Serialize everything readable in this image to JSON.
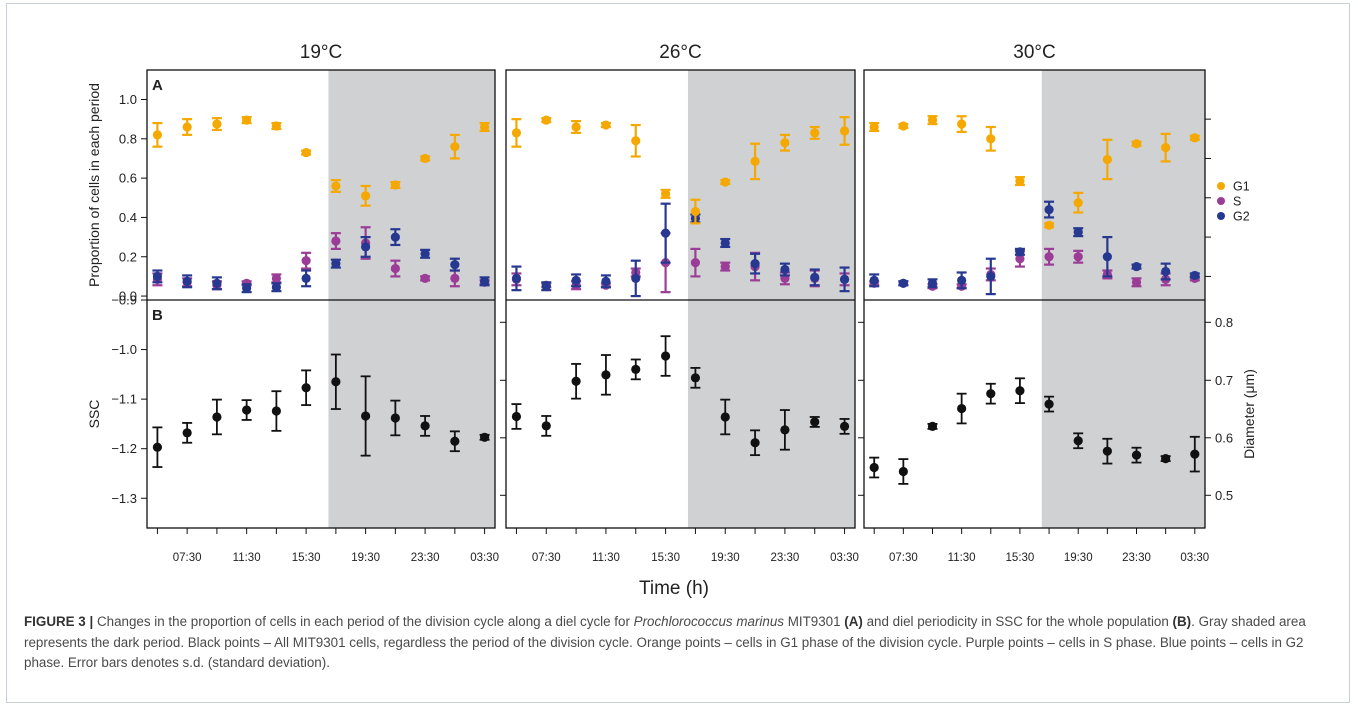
{
  "chart_data": {
    "type": "scatter",
    "panel_titles": [
      "19°C",
      "26°C",
      "30°C"
    ],
    "panel_letters": [
      "A",
      "B"
    ],
    "xlabel": "Time (h)",
    "x_tick_labels": [
      "07:30",
      "11:30",
      "15:30",
      "19:30",
      "23:30",
      "03:30"
    ],
    "x_times": [
      "05:30",
      "07:30",
      "09:30",
      "11:30",
      "13:30",
      "15:30",
      "17:30",
      "19:30",
      "21:30",
      "23:30",
      "01:30",
      "03:30"
    ],
    "dark_period_from": "17:00",
    "top": {
      "ylabel": "Proportion of cells in each period",
      "ylim": [
        -0.02,
        1.15
      ],
      "y_ticks": [
        "0.0",
        "0.2",
        "0.4",
        "0.6",
        "0.8",
        "1.0"
      ],
      "legend": [
        {
          "name": "G1",
          "color": "#f5a800"
        },
        {
          "name": "S",
          "color": "#9b3c96"
        },
        {
          "name": "G2",
          "color": "#273891"
        }
      ],
      "panels": [
        {
          "G1": {
            "values": [
              0.82,
              0.86,
              0.875,
              0.895,
              0.865,
              0.73,
              0.56,
              0.51,
              0.565,
              0.7,
              0.76,
              0.86
            ],
            "errors": [
              0.06,
              0.04,
              0.03,
              0.015,
              0.015,
              0.01,
              0.03,
              0.05,
              0.015,
              0.01,
              0.06,
              0.02
            ]
          },
          "S": {
            "values": [
              0.085,
              0.07,
              0.055,
              0.065,
              0.09,
              0.18,
              0.28,
              0.27,
              0.14,
              0.09,
              0.09,
              0.07
            ],
            "errors": [
              0.03,
              0.02,
              0.02,
              0.01,
              0.02,
              0.04,
              0.04,
              0.08,
              0.04,
              0.01,
              0.04,
              0.01
            ]
          },
          "G2": {
            "values": [
              0.1,
              0.075,
              0.065,
              0.04,
              0.045,
              0.09,
              0.165,
              0.25,
              0.3,
              0.215,
              0.16,
              0.075
            ],
            "errors": [
              0.03,
              0.03,
              0.03,
              0.02,
              0.02,
              0.04,
              0.02,
              0.05,
              0.04,
              0.02,
              0.03,
              0.02
            ]
          }
        },
        {
          "G1": {
            "values": [
              0.83,
              0.895,
              0.86,
              0.87,
              0.79,
              0.52,
              0.43,
              0.58,
              0.685,
              0.78,
              0.83,
              0.84
            ],
            "errors": [
              0.07,
              0.01,
              0.03,
              0.01,
              0.08,
              0.02,
              0.06,
              0.01,
              0.09,
              0.04,
              0.03,
              0.07
            ]
          },
          "S": {
            "values": [
              0.085,
              0.055,
              0.055,
              0.055,
              0.12,
              0.17,
              0.17,
              0.15,
              0.15,
              0.09,
              0.09,
              0.085
            ],
            "errors": [
              0.03,
              0.01,
              0.02,
              0.01,
              0.02,
              0.15,
              0.07,
              0.02,
              0.07,
              0.03,
              0.04,
              0.03
            ]
          },
          "G2": {
            "values": [
              0.09,
              0.05,
              0.08,
              0.075,
              0.09,
              0.32,
              0.395,
              0.27,
              0.165,
              0.135,
              0.095,
              0.085
            ],
            "errors": [
              0.06,
              0.02,
              0.03,
              0.03,
              0.09,
              0.15,
              0.02,
              0.02,
              0.05,
              0.03,
              0.04,
              0.06
            ]
          }
        },
        {
          "G1": {
            "values": [
              0.86,
              0.865,
              0.895,
              0.875,
              0.8,
              0.585,
              0.36,
              0.475,
              0.695,
              0.775,
              0.755,
              0.805
            ],
            "errors": [
              0.02,
              0.01,
              0.02,
              0.04,
              0.06,
              0.02,
              0.01,
              0.05,
              0.1,
              0.01,
              0.07,
              0.01
            ]
          },
          "S": {
            "values": [
              0.065,
              0.065,
              0.05,
              0.05,
              0.11,
              0.19,
              0.2,
              0.2,
              0.11,
              0.07,
              0.085,
              0.09
            ],
            "errors": [
              0.01,
              0.01,
              0.01,
              0.01,
              0.03,
              0.04,
              0.04,
              0.03,
              0.02,
              0.02,
              0.03,
              0.01
            ]
          },
          "G2": {
            "values": [
              0.08,
              0.065,
              0.065,
              0.08,
              0.1,
              0.225,
              0.44,
              0.325,
              0.2,
              0.15,
              0.125,
              0.105
            ],
            "errors": [
              0.03,
              0.01,
              0.02,
              0.04,
              0.09,
              0.015,
              0.04,
              0.02,
              0.1,
              0.01,
              0.04,
              0.01
            ]
          }
        }
      ]
    },
    "bottom": {
      "ylabel": "SSC",
      "ylim": [
        -1.36,
        -0.9
      ],
      "y_ticks": [
        "-0.9",
        "-1.0",
        "-1.1",
        "-1.2",
        "-1.3"
      ],
      "right_ylabel": "Diameter (μm)",
      "right_ticks": [
        "0.5",
        "0.6",
        "0.7",
        "0.8"
      ],
      "right_tick_ssc_positions": [
        -1.294,
        -1.178,
        -1.062,
        -0.945
      ],
      "series_color": "#111111",
      "panels": [
        {
          "values": [
            -1.197,
            -1.168,
            -1.136,
            -1.122,
            -1.124,
            -1.077,
            -1.065,
            -1.134,
            -1.138,
            -1.154,
            -1.185,
            -1.177
          ],
          "errors": [
            0.04,
            0.02,
            0.035,
            0.02,
            0.04,
            0.035,
            0.055,
            0.08,
            0.035,
            0.02,
            0.02,
            0.005
          ]
        },
        {
          "values": [
            -1.135,
            -1.154,
            -1.064,
            -1.051,
            -1.04,
            -1.013,
            -1.057,
            -1.136,
            -1.188,
            -1.162,
            -1.146,
            -1.155
          ],
          "errors": [
            0.025,
            0.02,
            0.035,
            0.04,
            0.02,
            0.04,
            0.02,
            0.035,
            0.025,
            0.04,
            0.01,
            0.015
          ]
        },
        {
          "values": [
            -1.238,
            -1.246,
            -1.155,
            -1.119,
            -1.089,
            -1.083,
            -1.11,
            -1.184,
            -1.205,
            -1.213,
            -1.22,
            -1.211
          ],
          "errors": [
            0.02,
            0.025,
            0.005,
            0.03,
            0.02,
            0.025,
            0.015,
            0.015,
            0.025,
            0.015,
            0.005,
            0.035
          ]
        }
      ]
    }
  },
  "caption": {
    "label": "FIGURE 3 |",
    "part1": " Changes in the proportion of cells in each period of the division cycle along a diel cycle for ",
    "species": "Prochlorococcus marinus",
    "part2": " MIT9301 ",
    "ref_a": "(A)",
    "part3": " and diel periodicity in SSC for the whole population ",
    "ref_b": "(B)",
    "part4": ". Gray shaded area represents the dark period. Black points – All MIT9301 cells, regardless the period of the division cycle. Orange points – cells in G1 phase of the division cycle. Purple points – cells in S phase. Blue points – cells in G2 phase. Error bars denotes s.d. (standard deviation)."
  }
}
